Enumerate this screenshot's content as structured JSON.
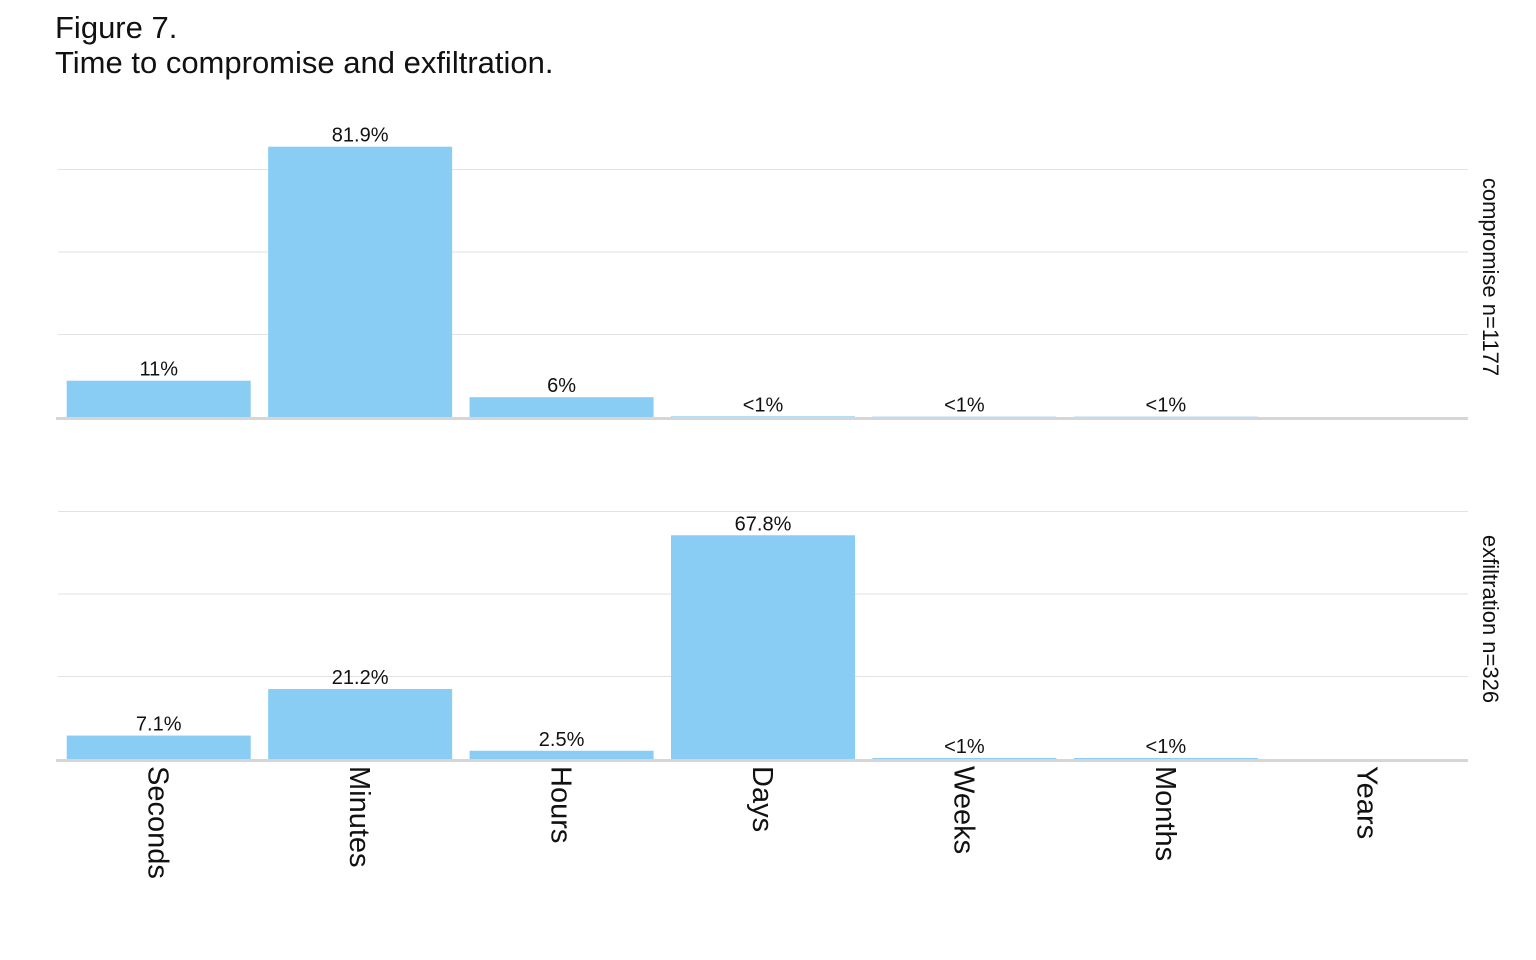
{
  "figure": {
    "label": "Figure 7.",
    "title": "Time to compromise and exfiltration."
  },
  "chart_data": {
    "type": "bar",
    "categories": [
      "Seconds",
      "Minutes",
      "Hours",
      "Days",
      "Weeks",
      "Months",
      "Years"
    ],
    "grid": true,
    "legend": "none",
    "bar_color": "#89cdf5",
    "ylim": [
      0,
      100
    ],
    "panels": [
      {
        "facet_label": "compromise n=1177",
        "values": [
          11,
          81.9,
          6,
          0.2,
          0.1,
          0.1,
          0
        ],
        "data_labels": [
          "11%",
          "81.9%",
          "6%",
          "<1%",
          "<1%",
          "<1%",
          ""
        ]
      },
      {
        "facet_label": "exfiltration n=326",
        "values": [
          7.1,
          21.2,
          2.5,
          67.8,
          0.3,
          0.3,
          0
        ],
        "data_labels": [
          "7.1%",
          "21.2%",
          "2.5%",
          "67.8%",
          "<1%",
          "<1%",
          ""
        ]
      }
    ]
  }
}
